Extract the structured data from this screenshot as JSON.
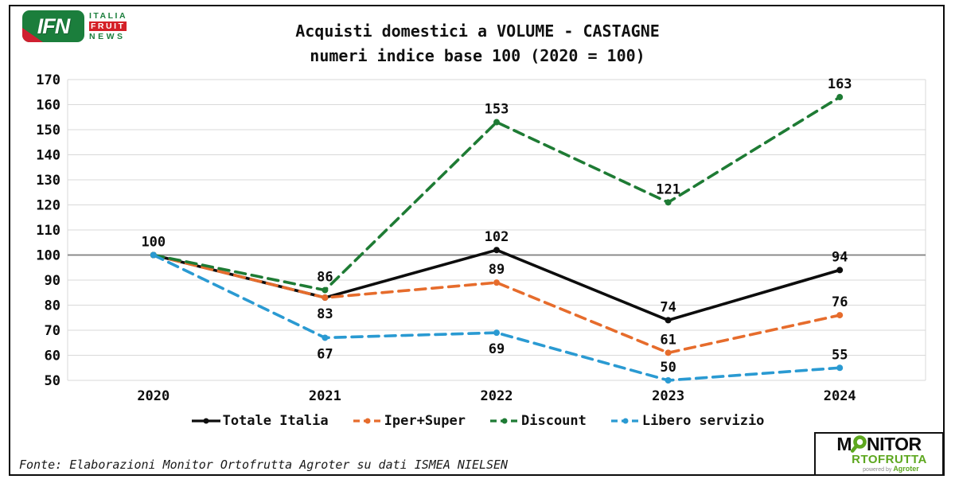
{
  "header": {
    "ifn_logo": {
      "abbr": "IFN",
      "line1": "ITALIA",
      "line2": "FRUIT",
      "line3": "NEWS",
      "green": "#1b7e3c",
      "red": "#d42027"
    },
    "title_line1": "Acquisti domestici a VOLUME - CASTAGNE",
    "title_line2": "numeri indice base 100 (2020 = 100)"
  },
  "chart_data": {
    "type": "line",
    "title": "Acquisti domestici a VOLUME - CASTAGNE",
    "subtitle": "numeri indice base 100 (2020 = 100)",
    "categories": [
      "2020",
      "2021",
      "2022",
      "2023",
      "2024"
    ],
    "series": [
      {
        "name": "Totale Italia",
        "color": "#0d0d0d",
        "dash": "solid",
        "values": [
          100,
          83,
          102,
          74,
          94
        ],
        "label_layout": [
          "above",
          "below",
          "above",
          "above",
          "above"
        ]
      },
      {
        "name": "Iper+Super",
        "color": "#e66c2c",
        "dash": "dashed",
        "values": [
          100,
          83,
          89,
          61,
          76
        ],
        "label_layout": [
          "none",
          "none",
          "above",
          "above",
          "above"
        ]
      },
      {
        "name": "Discount",
        "color": "#1e7b34",
        "dash": "dashed",
        "values": [
          100,
          86,
          153,
          121,
          163
        ],
        "label_layout": [
          "none",
          "above",
          "above",
          "above",
          "above"
        ]
      },
      {
        "name": "Libero servizio",
        "color": "#2a9ad2",
        "dash": "dashed",
        "values": [
          100,
          67,
          69,
          50,
          55
        ],
        "label_layout": [
          "none",
          "below",
          "below",
          "above",
          "above"
        ]
      }
    ],
    "ylim": [
      50,
      170
    ],
    "ytick_step": 10,
    "baseline": 100,
    "grid": true,
    "gridline_color": "#d9d9d9",
    "baseline_color": "#7f7f7f",
    "legend_position": "bottom"
  },
  "footer": {
    "source": "Fonte: Elaborazioni Monitor Ortofrutta Agroter su dati ISMEA NIELSEN"
  },
  "monitor_logo": {
    "line1_prefix": "M",
    "line1_suffix": "NITOR",
    "line2": "RTOFRUTTA",
    "powered_by": "powered by",
    "brand": "Agroter",
    "green": "#5da71f"
  }
}
